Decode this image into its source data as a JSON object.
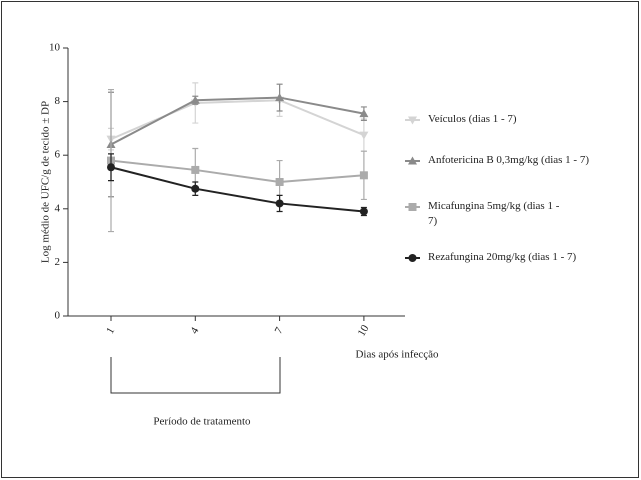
{
  "chart_data": {
    "type": "line",
    "x_label": "Dias após infecção",
    "y_label": "Log médio de UFC/g de tecido ± DP",
    "annotation": "Período de tratamento",
    "categories": [
      "1",
      "4",
      "7",
      "10"
    ],
    "ylim": [
      0,
      10
    ],
    "yticks": [
      0,
      2,
      4,
      6,
      8,
      10
    ],
    "series": [
      {
        "name": "Veículos (dias 1 - 7)",
        "color": "#d4d4d4",
        "marker": "triangle-down",
        "values": [
          6.6,
          7.95,
          8.05,
          6.75
        ],
        "errors": [
          0.4,
          0.75,
          0.6,
          0.6
        ]
      },
      {
        "name": "Anfotericina B 0,3mg/kg (dias 1 - 7)",
        "color": "#8a8a8a",
        "marker": "triangle-up",
        "values": [
          6.4,
          8.05,
          8.15,
          7.55
        ],
        "errors": [
          1.95,
          0.15,
          0.5,
          0.25
        ]
      },
      {
        "name": "Micafungina 5mg/kg (dias 1 - 7)",
        "color": "#ababab",
        "marker": "square",
        "values": [
          5.8,
          5.45,
          5.0,
          5.25
        ],
        "errors": [
          2.65,
          0.8,
          0.8,
          0.9
        ]
      },
      {
        "name": "Rezafungina 20mg/kg (dias 1 - 7)",
        "color": "#222222",
        "marker": "circle",
        "values": [
          5.55,
          4.75,
          4.2,
          3.9
        ],
        "errors": [
          0.5,
          0.25,
          0.3,
          0.15
        ]
      }
    ]
  }
}
